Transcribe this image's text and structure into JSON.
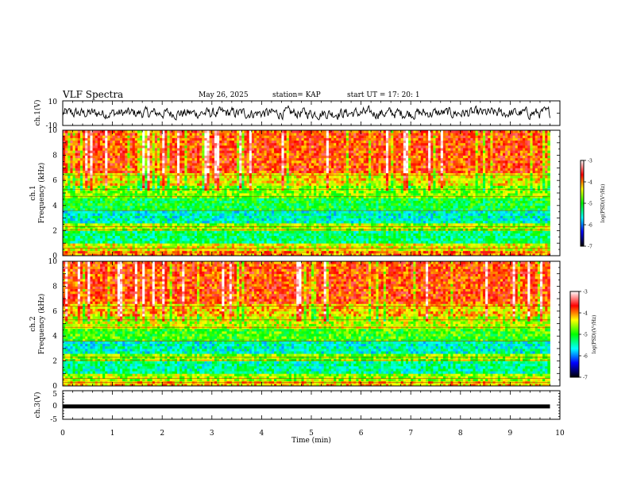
{
  "header": {
    "title": "VLF Spectra",
    "date": "May 26, 2025",
    "station": "station= KAP",
    "start": "start  UT  =   17: 20: 1"
  },
  "colors": {
    "trace": "#000000",
    "background": "#ffffff",
    "colormap": [
      "#000000",
      "#0000ff",
      "#00ffff",
      "#00ff00",
      "#ffff00",
      "#ff0000",
      "#ffffff"
    ]
  },
  "chart_data": [
    {
      "type": "line",
      "panel": "ch1-waveform",
      "ylabel": "ch.1(V)",
      "ylim": [
        -10,
        10
      ],
      "y_tick_labels": [
        "10",
        "-10"
      ],
      "xlim": [
        0,
        10
      ],
      "description_values": "noisy waveform with amplitude between -6 and 6 V",
      "amplitude_range": [
        -6,
        6
      ]
    },
    {
      "type": "heatmap",
      "panel": "ch1-spectrogram",
      "ylabel": "ch.1\nFrequency  (kHz)",
      "ylabel_lines": [
        "ch.1",
        "Frequency  (kHz)"
      ],
      "ylim": [
        0,
        10
      ],
      "y_tick_labels": [
        "0",
        "2",
        "4",
        "6",
        "8",
        "10"
      ],
      "xlim": [
        0,
        10
      ],
      "data_end_min": 9.8,
      "colorbar": {
        "label": "log(PSD)(V²/Hz)",
        "range": [
          -7,
          -3
        ],
        "tick_labels": [
          "-3",
          "-4",
          "-5",
          "-6",
          "-7"
        ]
      },
      "bands": [
        {
          "fmin": 0.0,
          "fmax": 0.4,
          "level": -4.0
        },
        {
          "fmin": 0.4,
          "fmax": 1.0,
          "level": -4.4
        },
        {
          "fmin": 1.0,
          "fmax": 2.0,
          "level": -5.3
        },
        {
          "fmin": 2.0,
          "fmax": 2.6,
          "level": -4.6
        },
        {
          "fmin": 2.6,
          "fmax": 3.6,
          "level": -5.5
        },
        {
          "fmin": 3.6,
          "fmax": 4.6,
          "level": -5.1
        },
        {
          "fmin": 4.6,
          "fmax": 5.6,
          "level": -4.7
        },
        {
          "fmin": 5.6,
          "fmax": 6.6,
          "level": -4.3
        },
        {
          "fmin": 6.6,
          "fmax": 10.0,
          "level": -3.8
        }
      ]
    },
    {
      "type": "heatmap",
      "panel": "ch2-spectrogram",
      "ylabel": "ch.2\nFrequency  (kHz)",
      "ylabel_lines": [
        "ch.2",
        "Frequency  (kHz)"
      ],
      "ylim": [
        0,
        10
      ],
      "y_tick_labels": [
        "0",
        "2",
        "4",
        "6",
        "8",
        "10"
      ],
      "xlim": [
        0,
        10
      ],
      "data_end_min": 9.8,
      "colorbar": {
        "label": "log(PSD)(V²/Hz)",
        "range": [
          -7,
          -3
        ],
        "tick_labels": [
          "-3",
          "-4",
          "-5",
          "-6",
          "-7"
        ]
      },
      "bands": [
        {
          "fmin": 0.0,
          "fmax": 0.4,
          "level": -4.2
        },
        {
          "fmin": 0.4,
          "fmax": 1.0,
          "level": -4.6
        },
        {
          "fmin": 1.0,
          "fmax": 2.0,
          "level": -5.4
        },
        {
          "fmin": 2.0,
          "fmax": 2.6,
          "level": -4.7
        },
        {
          "fmin": 2.6,
          "fmax": 3.6,
          "level": -5.5
        },
        {
          "fmin": 3.6,
          "fmax": 4.6,
          "level": -4.9
        },
        {
          "fmin": 4.6,
          "fmax": 5.6,
          "level": -4.5
        },
        {
          "fmin": 5.6,
          "fmax": 6.6,
          "level": -4.2
        },
        {
          "fmin": 6.6,
          "fmax": 10.0,
          "level": -3.8
        }
      ]
    },
    {
      "type": "line",
      "panel": "ch3-waveform",
      "ylabel": "ch.3(V)",
      "ylim": [
        -5,
        5
      ],
      "y_tick_labels": [
        "5",
        "0",
        "-5"
      ],
      "xlim": [
        0,
        10
      ],
      "xlabel": "Time  (min)",
      "x_tick_labels": [
        "0",
        "1",
        "2",
        "3",
        "4",
        "5",
        "6",
        "7",
        "8",
        "9",
        "10"
      ],
      "level_V": -0.5,
      "data_end_min": 9.8
    }
  ]
}
